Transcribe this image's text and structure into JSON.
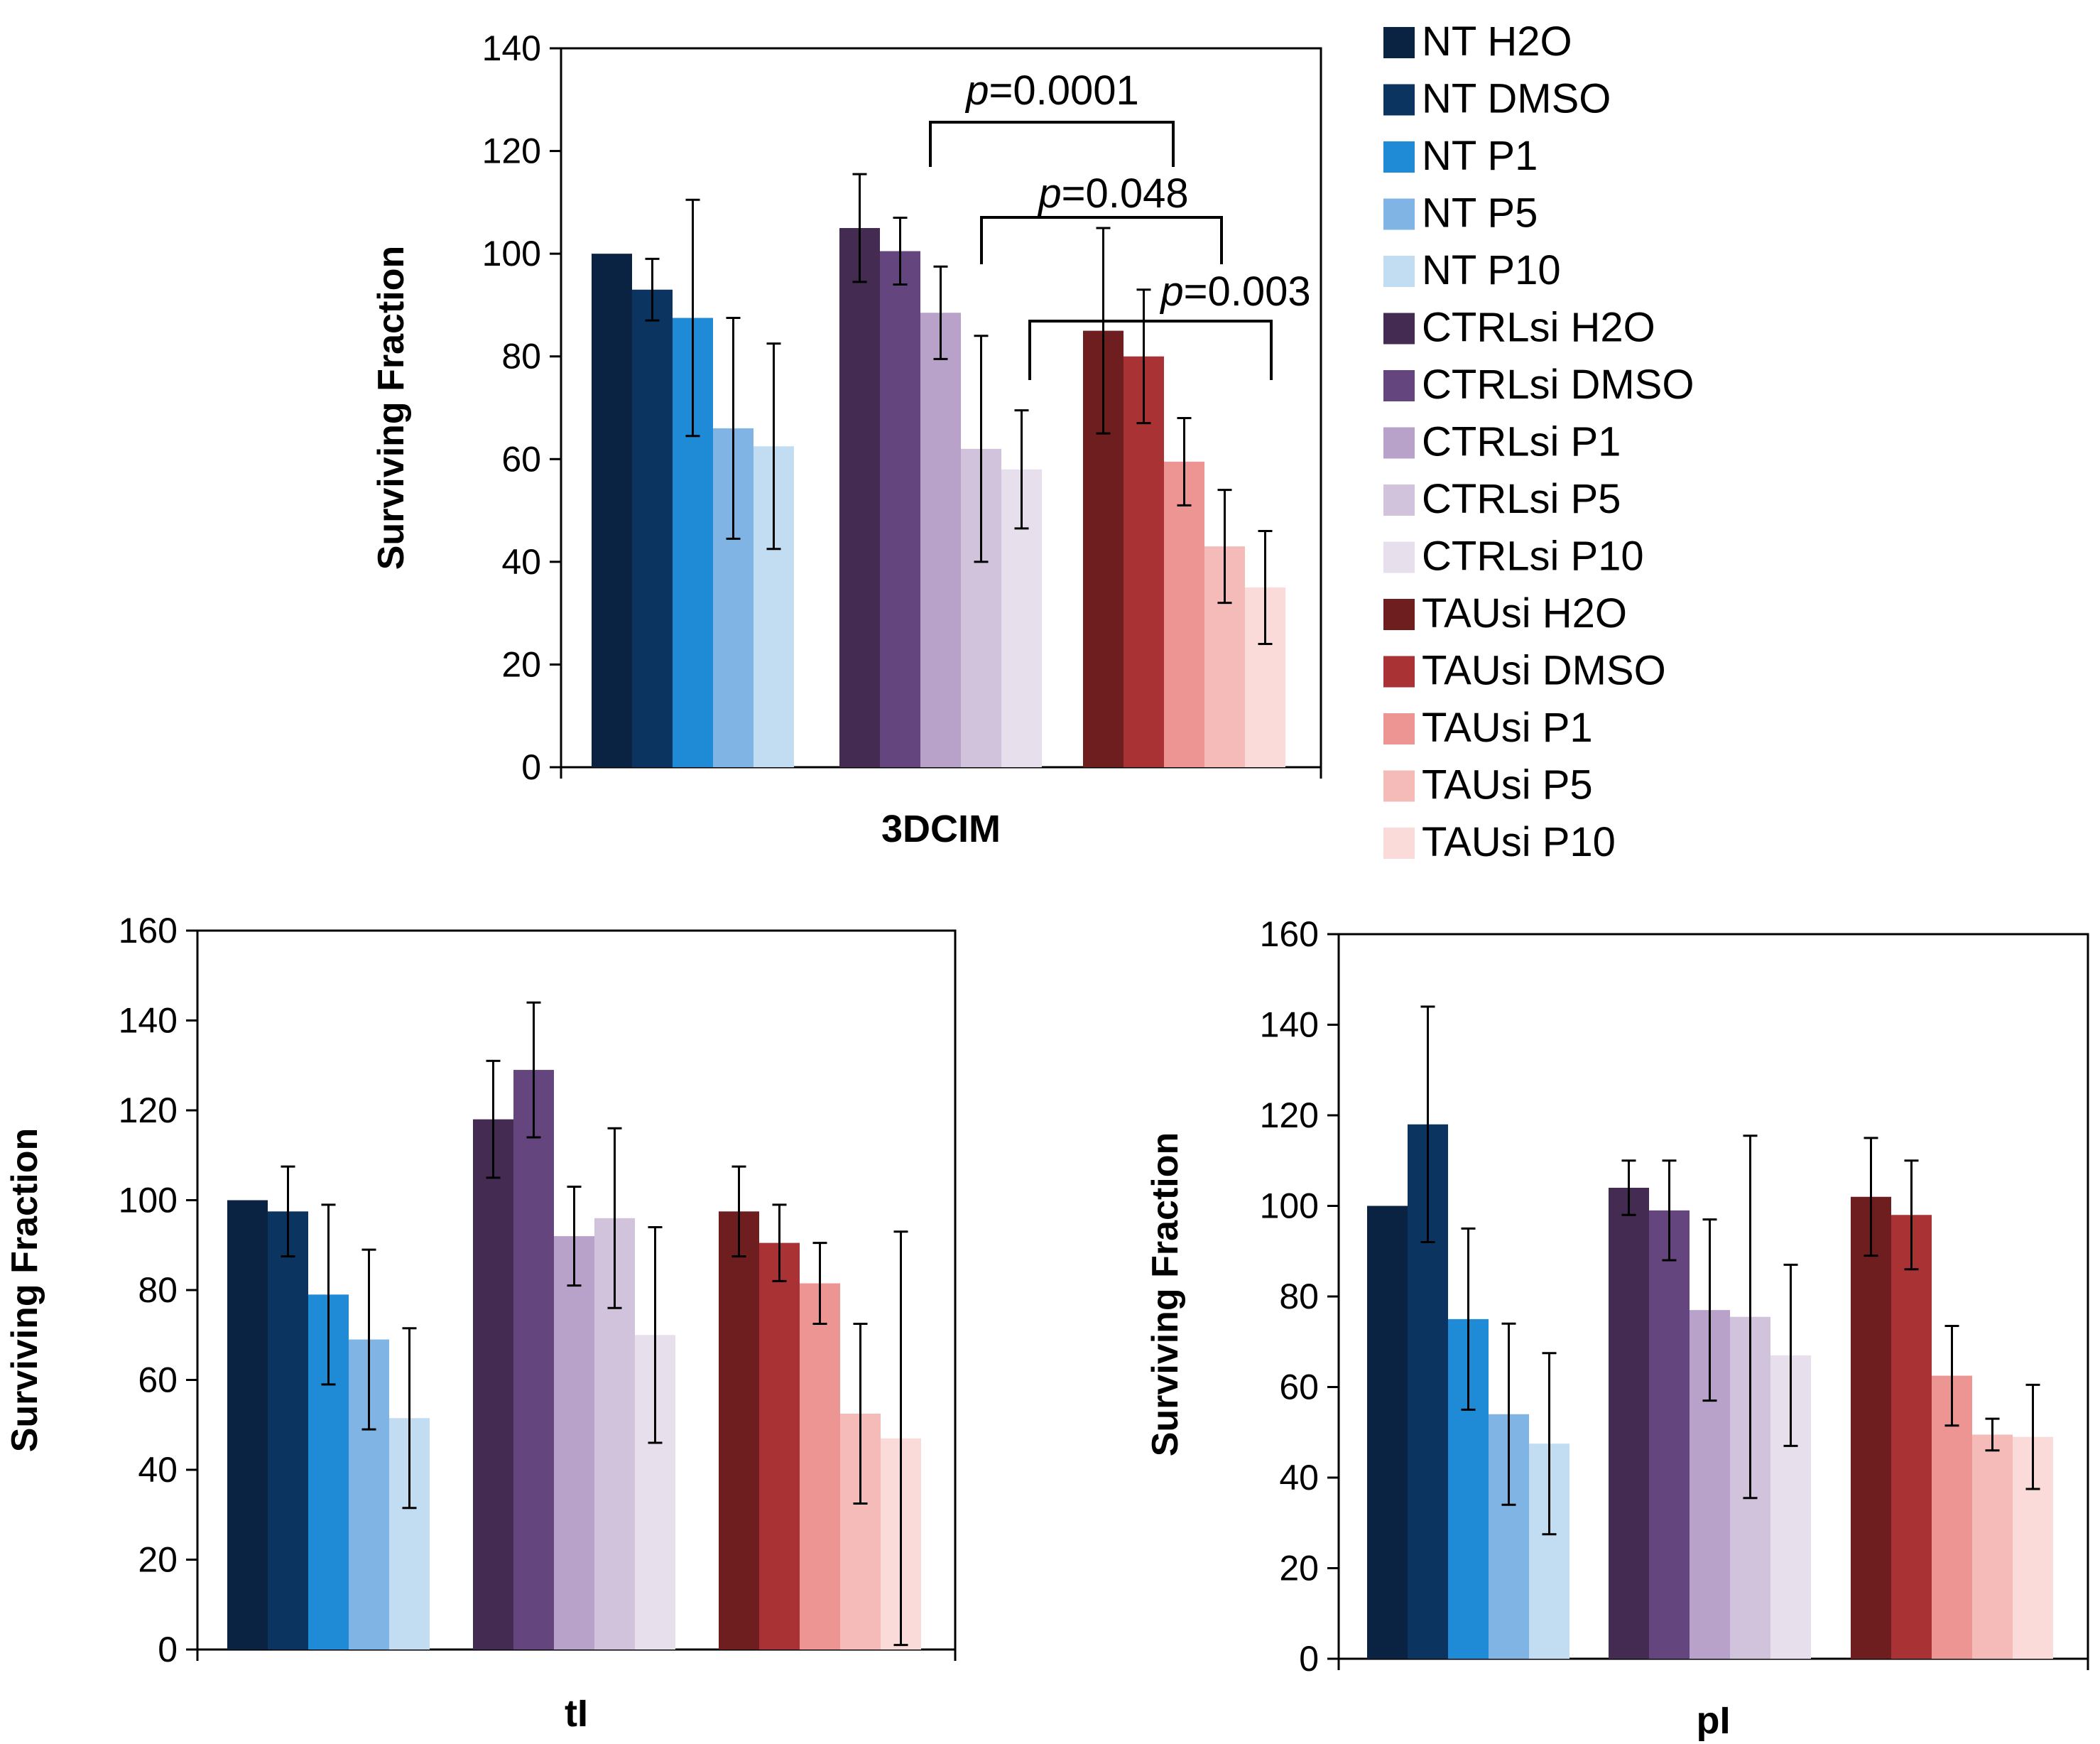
{
  "figure": {
    "series_names": [
      "NT H2O",
      "NT DMSO",
      "NT P1",
      "NT P5",
      "NT P10",
      "CTRLsi H2O",
      "CTRLsi DMSO",
      "CTRLsi P1",
      "CTRLsi P5",
      "CTRLsi P10",
      "TAUsi H2O",
      "TAUsi DMSO",
      "TAUsi P1",
      "TAUsi P5",
      "TAUsi P10"
    ],
    "colors": {
      "NT H2O": "#0a2342",
      "NT DMSO": "#0b3461",
      "NT P1": "#1f8ad6",
      "NT P5": "#7fb4e4",
      "NT P10": "#c2dcf2",
      "CTRLsi H2O": "#432b52",
      "CTRLsi DMSO": "#65457d",
      "CTRLsi P1": "#b9a2c9",
      "CTRLsi P5": "#d1c3dc",
      "CTRLsi P10": "#e7e0ec",
      "TAUsi H2O": "#6f1e20",
      "TAUsi DMSO": "#a83234",
      "TAUsi P1": "#ed9593",
      "TAUsi P5": "#f5bbb9",
      "TAUsi P10": "#fadbd9"
    }
  },
  "chart_data": [
    {
      "id": "3DCIM",
      "type": "bar",
      "categories": [
        "3DCIM"
      ],
      "ylabel": "Surviving Fraction",
      "xlabel": "3DCIM",
      "ylim": [
        0,
        140
      ],
      "yticks": [
        0,
        20,
        40,
        60,
        80,
        100,
        120,
        140
      ],
      "groups": [
        {
          "values": [
            100,
            93,
            87.5,
            66,
            62.5
          ],
          "errors": [
            0,
            6,
            23,
            21.5,
            20
          ]
        },
        {
          "values": [
            105,
            100.5,
            88.5,
            62,
            58
          ],
          "errors": [
            10.5,
            6.5,
            9,
            22,
            11.5
          ]
        },
        {
          "values": [
            85,
            80,
            59.5,
            43,
            35
          ],
          "errors": [
            20,
            13,
            8.5,
            11,
            11
          ]
        }
      ],
      "annotations": [
        {
          "prefix": "p",
          "text": "=0.0001"
        },
        {
          "prefix": "p",
          "text": "=0.048"
        },
        {
          "prefix": "p",
          "text": "=0.003"
        }
      ]
    },
    {
      "id": "tI",
      "type": "bar",
      "categories": [
        "tI"
      ],
      "ylabel": "Surviving Fraction",
      "xlabel": "tI",
      "ylim": [
        0,
        160
      ],
      "yticks": [
        0,
        20,
        40,
        60,
        80,
        100,
        120,
        140,
        160
      ],
      "groups": [
        {
          "values": [
            100,
            97.5,
            79,
            69,
            51.5
          ],
          "errors": [
            0,
            10,
            20,
            20,
            20
          ]
        },
        {
          "values": [
            118,
            129,
            92,
            96,
            70
          ],
          "errors": [
            13,
            15,
            11,
            20,
            24
          ]
        },
        {
          "values": [
            97.5,
            90.5,
            81.5,
            52.5,
            47
          ],
          "errors": [
            10,
            8.5,
            9,
            20,
            46
          ]
        }
      ]
    },
    {
      "id": "pI",
      "type": "bar",
      "categories": [
        "pI"
      ],
      "ylabel": "Surviving Fraction",
      "xlabel": "pI",
      "ylim": [
        0,
        160
      ],
      "yticks": [
        0,
        20,
        40,
        60,
        80,
        100,
        120,
        140,
        160
      ],
      "groups": [
        {
          "values": [
            100,
            118,
            75,
            54,
            47.5
          ],
          "errors": [
            0,
            26,
            20,
            20,
            20
          ]
        },
        {
          "values": [
            104,
            99,
            77,
            75.5,
            67
          ],
          "errors": [
            6,
            11,
            20,
            40,
            20
          ]
        },
        {
          "values": [
            102,
            98,
            62.5,
            49.5,
            49
          ],
          "errors": [
            13,
            12,
            11,
            3.5,
            11.5
          ]
        }
      ]
    }
  ]
}
